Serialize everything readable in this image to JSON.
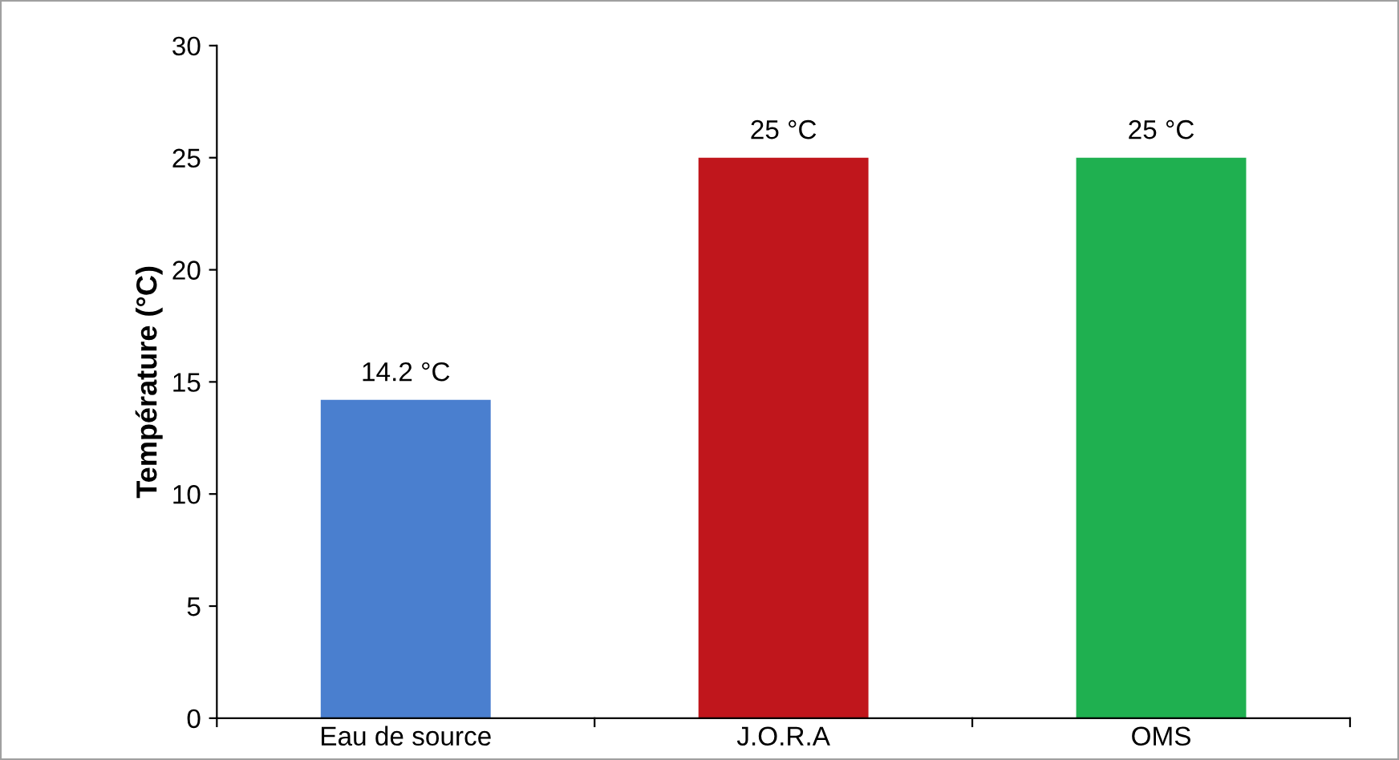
{
  "chart_data": {
    "type": "bar",
    "ylabel": "Température (°C)",
    "categories": [
      "Eau de source",
      "J.O.R.A",
      "OMS"
    ],
    "values": [
      14.2,
      25,
      25
    ],
    "colors": [
      "#4a7fcf",
      "#c0161c",
      "#1fb050"
    ],
    "value_labels": [
      "14.2 °C",
      "25 °C",
      "25 °C"
    ],
    "ylim": [
      0,
      30
    ],
    "yticks": [
      0,
      5,
      10,
      15,
      20,
      25,
      30
    ],
    "grid": false,
    "legend": false
  }
}
